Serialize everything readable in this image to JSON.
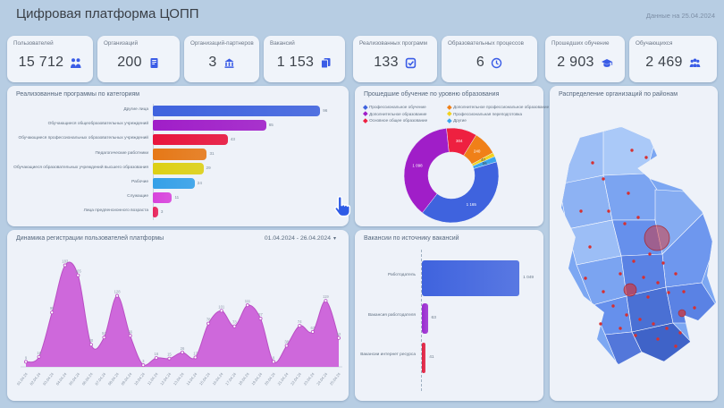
{
  "header": {
    "title": "Цифровая платформа ЦОПП",
    "date_note": "Данные на 25.04.2024"
  },
  "kpi_cards": [
    {
      "label": "Пользователей",
      "value": "15 712",
      "icon": "people-icon"
    },
    {
      "label": "Организаций",
      "value": "200",
      "icon": "document-icon"
    },
    {
      "label": "Организаций-партнеров",
      "value": "3",
      "icon": "bank-icon"
    },
    {
      "label": "Вакансий",
      "value": "1 153",
      "icon": "files-icon"
    },
    {
      "label": "Реализованных программ",
      "value": "133",
      "icon": "checkbox-icon"
    },
    {
      "label": "Образовательных процессов",
      "value": "6",
      "icon": "clock-icon"
    },
    {
      "label": "Прошедших обучение",
      "value": "2 903",
      "icon": "graduation-icon"
    },
    {
      "label": "Обучающихся",
      "value": "2 469",
      "icon": "group-icon"
    }
  ],
  "panels": {
    "programs": {
      "title": "Реализованные программы по категориям"
    },
    "education": {
      "title": "Прошедшие обучение по уровню образования"
    },
    "map": {
      "title": "Распределение организаций по районам"
    },
    "registrations": {
      "title": "Динамика регистрации пользователей платформы",
      "range": "01.04.2024 - 26.04.2024",
      "caret": "▾"
    },
    "vacancies": {
      "title": "Вакансии по источнику вакансий"
    }
  },
  "chart_data": [
    {
      "id": "programs_by_category",
      "type": "bar",
      "orientation": "horizontal",
      "title": "Реализованные программы по категориям",
      "categories": [
        "Другие лица",
        "Обучающиеся общеобразовательных учреждений",
        "Обучающиеся профессиональных образовательных учреждений",
        "Педагогические работники",
        "Обучающиеся образовательных учреждений высшего образования",
        "Рабочие",
        "Служащие",
        "Лица предпенсионного возраста"
      ],
      "values": [
        96,
        65,
        43,
        31,
        29,
        24,
        11,
        3
      ],
      "colors": [
        "#3f63de",
        "#a01ec8",
        "#e8143c",
        "#e67817",
        "#ddd014",
        "#35a0e8",
        "#d843dc",
        "#e8255c"
      ],
      "xlim": [
        0,
        100
      ],
      "grid": false
    },
    {
      "id": "training_by_education_level",
      "type": "pie",
      "title": "Прошедшие обучение по уровню образования",
      "donut": true,
      "start_angle_deg": -6,
      "slices": [
        {
          "label": "Основное общее образование",
          "value": 304,
          "value_label": "304",
          "color": "#ee2040"
        },
        {
          "label": "Дополнительное профессиональное образование",
          "value": 240,
          "value_label": "240",
          "color": "#f08018"
        },
        {
          "label": "Профессиональная переподготовка",
          "value": 40,
          "value_label": "40",
          "color": "#f2d21f"
        },
        {
          "label": "Другие",
          "value": 56,
          "value_label": "56",
          "color": "#3da5ec"
        },
        {
          "label": "Профессиональное обучение",
          "value": 1165,
          "value_label": "1 165",
          "color": "#3f63de"
        },
        {
          "label": "Дополнительное образование",
          "value": 1098,
          "value_label": "1 098",
          "color": "#a01ec8"
        }
      ],
      "legend_columns": [
        [
          {
            "label": "Профессиональное обучение",
            "color": "#3f63de"
          },
          {
            "label": "Дополнительное образование",
            "color": "#a01ec8"
          },
          {
            "label": "Основное общее образование",
            "color": "#ee2040"
          }
        ],
        [
          {
            "label": "Дополнительное профессиональное образование",
            "color": "#f08018"
          },
          {
            "label": "Профессиональная переподготовка",
            "color": "#f2d21f"
          },
          {
            "label": "Другие",
            "color": "#3da5ec"
          }
        ]
      ],
      "legend_position": "top"
    },
    {
      "id": "user_registrations",
      "type": "area",
      "title": "Динамика регистрации пользователей платформы",
      "x": [
        "01.04.24",
        "02.04.24",
        "03.04.24",
        "04.04.24",
        "05.04.24",
        "06.04.24",
        "07.04.24",
        "08.04.24",
        "09.04.24",
        "10.04.24",
        "11.04.24",
        "12.04.24",
        "13.04.24",
        "14.04.24",
        "15.04.24",
        "16.04.24",
        "17.04.24",
        "18.04.24",
        "19.04.24",
        "20.04.24",
        "21.04.24",
        "22.04.24",
        "23.04.24",
        "24.04.24",
        "25.04.24"
      ],
      "values": [
        9,
        18,
        98,
        183,
        165,
        40,
        53,
        128,
        56,
        3,
        16,
        15,
        26,
        17,
        78,
        101,
        73,
        111,
        87,
        9,
        38,
        74,
        63,
        119,
        52
      ],
      "color": "#cb5cd8",
      "line_color": "#b94fc4",
      "ylim": [
        0,
        190
      ],
      "grid": false
    },
    {
      "id": "vacancies_by_source",
      "type": "bar",
      "orientation": "horizontal",
      "title": "Вакансии по источнику вакансий",
      "categories": [
        "Работодатель",
        "Вакансия работодателя",
        "Вакансии интернет ресурса"
      ],
      "values": [
        1049,
        63,
        41
      ],
      "value_labels": [
        "1 049",
        "63",
        "41"
      ],
      "colors": [
        "#3f63de",
        "#9a2ad0",
        "#e01f3f"
      ],
      "xlim": [
        0,
        1100
      ],
      "grid": false
    }
  ],
  "map": {
    "title": "Распределение организаций по районам",
    "bubble_color": "#d63031",
    "region_palette": [
      "#a6c6f8",
      "#8db2f3",
      "#7ba4f1",
      "#6690ec",
      "#5a82e4",
      "#4a70d4",
      "#3f63c8"
    ]
  }
}
